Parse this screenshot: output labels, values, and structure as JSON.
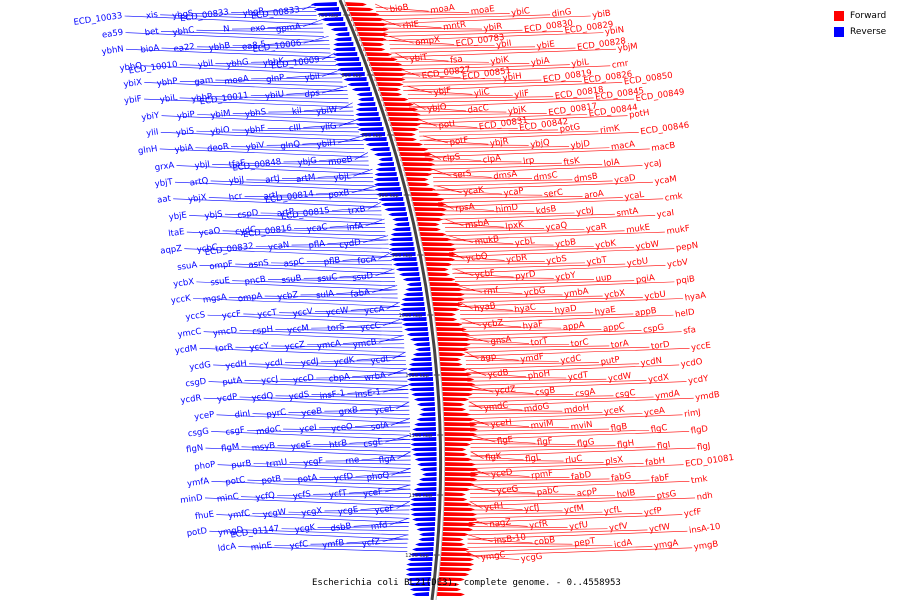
{
  "caption": "Escherichia coli BL21(DE3), complete genome. - 0..4558953",
  "legend": [
    {
      "label": "Forward",
      "color": "#ff0000"
    },
    {
      "label": "Reverse",
      "color": "#0000ff"
    }
  ],
  "scale_ticks": [
    "750 kbp",
    "800 kbp",
    "850 kbp",
    "900 kbp",
    "950 kbp",
    "1000 kbp",
    "1050 kbp",
    "1100 kbp",
    "1150 kbp",
    "1200 kbp"
  ],
  "forward_genes": [
    "bioB",
    "moaA",
    "moaE",
    "ybiC",
    "dinG",
    "ybiB",
    "rhlE",
    "mntR",
    "ybiR",
    "ECD_00830",
    "ECD_00829",
    "ybiN",
    "ompX",
    "ECD_00783",
    "ybiI",
    "ybiE",
    "ECD_00828",
    "ybjM",
    "ybiT",
    "fsa",
    "ybiK",
    "ybiA",
    "ybiL",
    "cmr",
    "ECD_00827",
    "ECD_00851",
    "ybiH",
    "ECD_00819",
    "ECD_00826",
    "ECD_00850",
    "ybjF",
    "yliC",
    "yliF",
    "ECD_00818",
    "ECD_00845",
    "ECD_00849",
    "ybjO",
    "dacC",
    "ybjK",
    "ECD_00817",
    "ECD_00844",
    "potH",
    "potI",
    "ECD_00831",
    "ECD_00842",
    "potG",
    "rimK",
    "ECD_00846",
    "potF",
    "ybjR",
    "ybjQ",
    "ybjD",
    "macA",
    "macB",
    "clpS",
    "clpA",
    "lrp",
    "ftsK",
    "lolA",
    "ycaJ",
    "serS",
    "dmsA",
    "dmsC",
    "dmsB",
    "ycaD",
    "ycaM",
    "ycaK",
    "ycaP",
    "serC",
    "aroA",
    "ycaL",
    "cmk",
    "rpsA",
    "himD",
    "kdsB",
    "ycbJ",
    "smtA",
    "ycaI",
    "msbA",
    "lpxK",
    "ycaQ",
    "ycaR",
    "mukE",
    "mukF",
    "mukB",
    "ycbL",
    "ycbB",
    "ycbK",
    "ycbW",
    "pepN",
    "ycbQ",
    "ycbR",
    "ycbS",
    "ycbT",
    "ycbU",
    "ycbV",
    "ycbF",
    "pyrD",
    "ycbY",
    "uup",
    "pqiA",
    "pqiB",
    "rmf",
    "ycbG",
    "ymbA",
    "ycbX",
    "ycbU",
    "hyaA",
    "hyaB",
    "hyaC",
    "hyaD",
    "hyaE",
    "appB",
    "helD",
    "ycbZ",
    "hyaF",
    "appA",
    "appC",
    "cspG",
    "sfa",
    "gnsA",
    "torT",
    "torC",
    "torA",
    "torD",
    "yccE",
    "agp",
    "ymdF",
    "ycdC",
    "putP",
    "ycdN",
    "ycdO",
    "ycdB",
    "phoH",
    "ycdT",
    "ycdW",
    "ycdX",
    "ycdY",
    "ycdZ",
    "csgB",
    "csgA",
    "csgC",
    "ymdA",
    "ymdB",
    "ymdC",
    "mdoG",
    "mdoH",
    "yceK",
    "yceA",
    "rimJ",
    "yceH",
    "mviM",
    "mviN",
    "flgB",
    "flgC",
    "flgD",
    "flgE",
    "flgF",
    "flgG",
    "flgH",
    "flgI",
    "flgJ",
    "flgK",
    "flgL",
    "rluC",
    "plsX",
    "fabH",
    "ECD_01081",
    "yceD",
    "rpmF",
    "fabD",
    "fabG",
    "fabF",
    "tmk",
    "yceG",
    "pabC",
    "acpP",
    "holB",
    "ptsG",
    "ndh",
    "ycfH",
    "ycfJ",
    "ycfM",
    "ycfL",
    "ycfP",
    "ycfF",
    "nagZ",
    "ycfR",
    "ycfU",
    "ycfV",
    "ycfW",
    "insA-10",
    "insB-10",
    "cobB",
    "pepT",
    "icdA",
    "ymgA",
    "ymgB",
    "ymgC",
    "ycgG"
  ],
  "reverse_genes": [
    "ECD_00833",
    "ybgR",
    "ECD_00833",
    "ybgS",
    "xis",
    "ECD_10033",
    "gpmA",
    "exo",
    "N",
    "ybhC",
    "bet",
    "ea59",
    "ECD_10006",
    "ea8.5",
    "ybhB",
    "ea22",
    "bioA",
    "ybhN",
    "ECD_10009",
    "ybhK",
    "ybhG",
    "ybiI",
    "ECD_10010",
    "ybhQ",
    "ybiI",
    "glnP",
    "moeA",
    "gam",
    "ybhP",
    "ybiX",
    "dps",
    "ybiU",
    "ECD_10011",
    "ybhR",
    "ybiL",
    "ybiF",
    "ybiW",
    "kil",
    "ybhS",
    "ybiM",
    "ybiP",
    "ybiY",
    "yliG",
    "cIII",
    "ybhF",
    "ybiO",
    "ybiS",
    "yliI",
    "ybiH",
    "glnQ",
    "ybiV",
    "deoR",
    "ybiA",
    "glnH",
    "moeB",
    "ybjG",
    "ECD_00848",
    "tfaE",
    "ybjI",
    "grxA",
    "ybjL",
    "artM",
    "artJ",
    "ybjJ",
    "artQ",
    "ybjT",
    "poxB",
    "ECD_00814",
    "artI",
    "hcr",
    "ybjX",
    "aat",
    "trxB",
    "ECD_00815",
    "artP",
    "cspD",
    "ybjS",
    "ybjE",
    "infA",
    "ycaC",
    "ECD_00816",
    "cydC",
    "ycaO",
    "ltaE",
    "cydD",
    "pflA",
    "ycaN",
    "ECD_00832",
    "ycbC",
    "aqpZ",
    "focA",
    "pflB",
    "aspC",
    "asnS",
    "ompF",
    "ssuA",
    "ssuD",
    "ssuC",
    "ssuB",
    "pncB",
    "ssuE",
    "ycbX",
    "fabA",
    "sulA",
    "ycbZ",
    "ompA",
    "mgsA",
    "yccK",
    "yccA",
    "yccW",
    "yccV",
    "yccT",
    "yccF",
    "yccS",
    "yccC",
    "torS",
    "yccM",
    "cspH",
    "ymcD",
    "ymcC",
    "ymcB",
    "ymcA",
    "yccZ",
    "yccY",
    "torR",
    "ycdM",
    "ycdL",
    "ycdK",
    "ycdJ",
    "ycdI",
    "ycdH",
    "ycdG",
    "wrbA",
    "cbpA",
    "yccD",
    "yccJ",
    "putA",
    "csgD",
    "insE-1",
    "insF-1",
    "ycdS",
    "ycdQ",
    "ycdP",
    "ycdR",
    "yceL",
    "grxB",
    "yceB",
    "pyrC",
    "dinI",
    "yceP",
    "solA",
    "yceO",
    "yceI",
    "mdoC",
    "csgF",
    "csgG",
    "csgE",
    "htrB",
    "yceE",
    "msyB",
    "flgM",
    "flgN",
    "flgA",
    "rne",
    "ycgF",
    "trmU",
    "purB",
    "phoP",
    "phoQ",
    "ycfD",
    "potA",
    "potB",
    "potC",
    "ymfA",
    "yceF",
    "ycfT",
    "ycfS",
    "ycfQ",
    "minC",
    "minD",
    "yceF",
    "ycgE",
    "ycgX",
    "ycgW",
    "ymfC",
    "fhuE",
    "mfd",
    "dsbB",
    "ycgK",
    "ECD_01147",
    "ymgD",
    "potD",
    "ycfZ",
    "ymfB",
    "ycfC",
    "minE",
    "ldcA"
  ]
}
